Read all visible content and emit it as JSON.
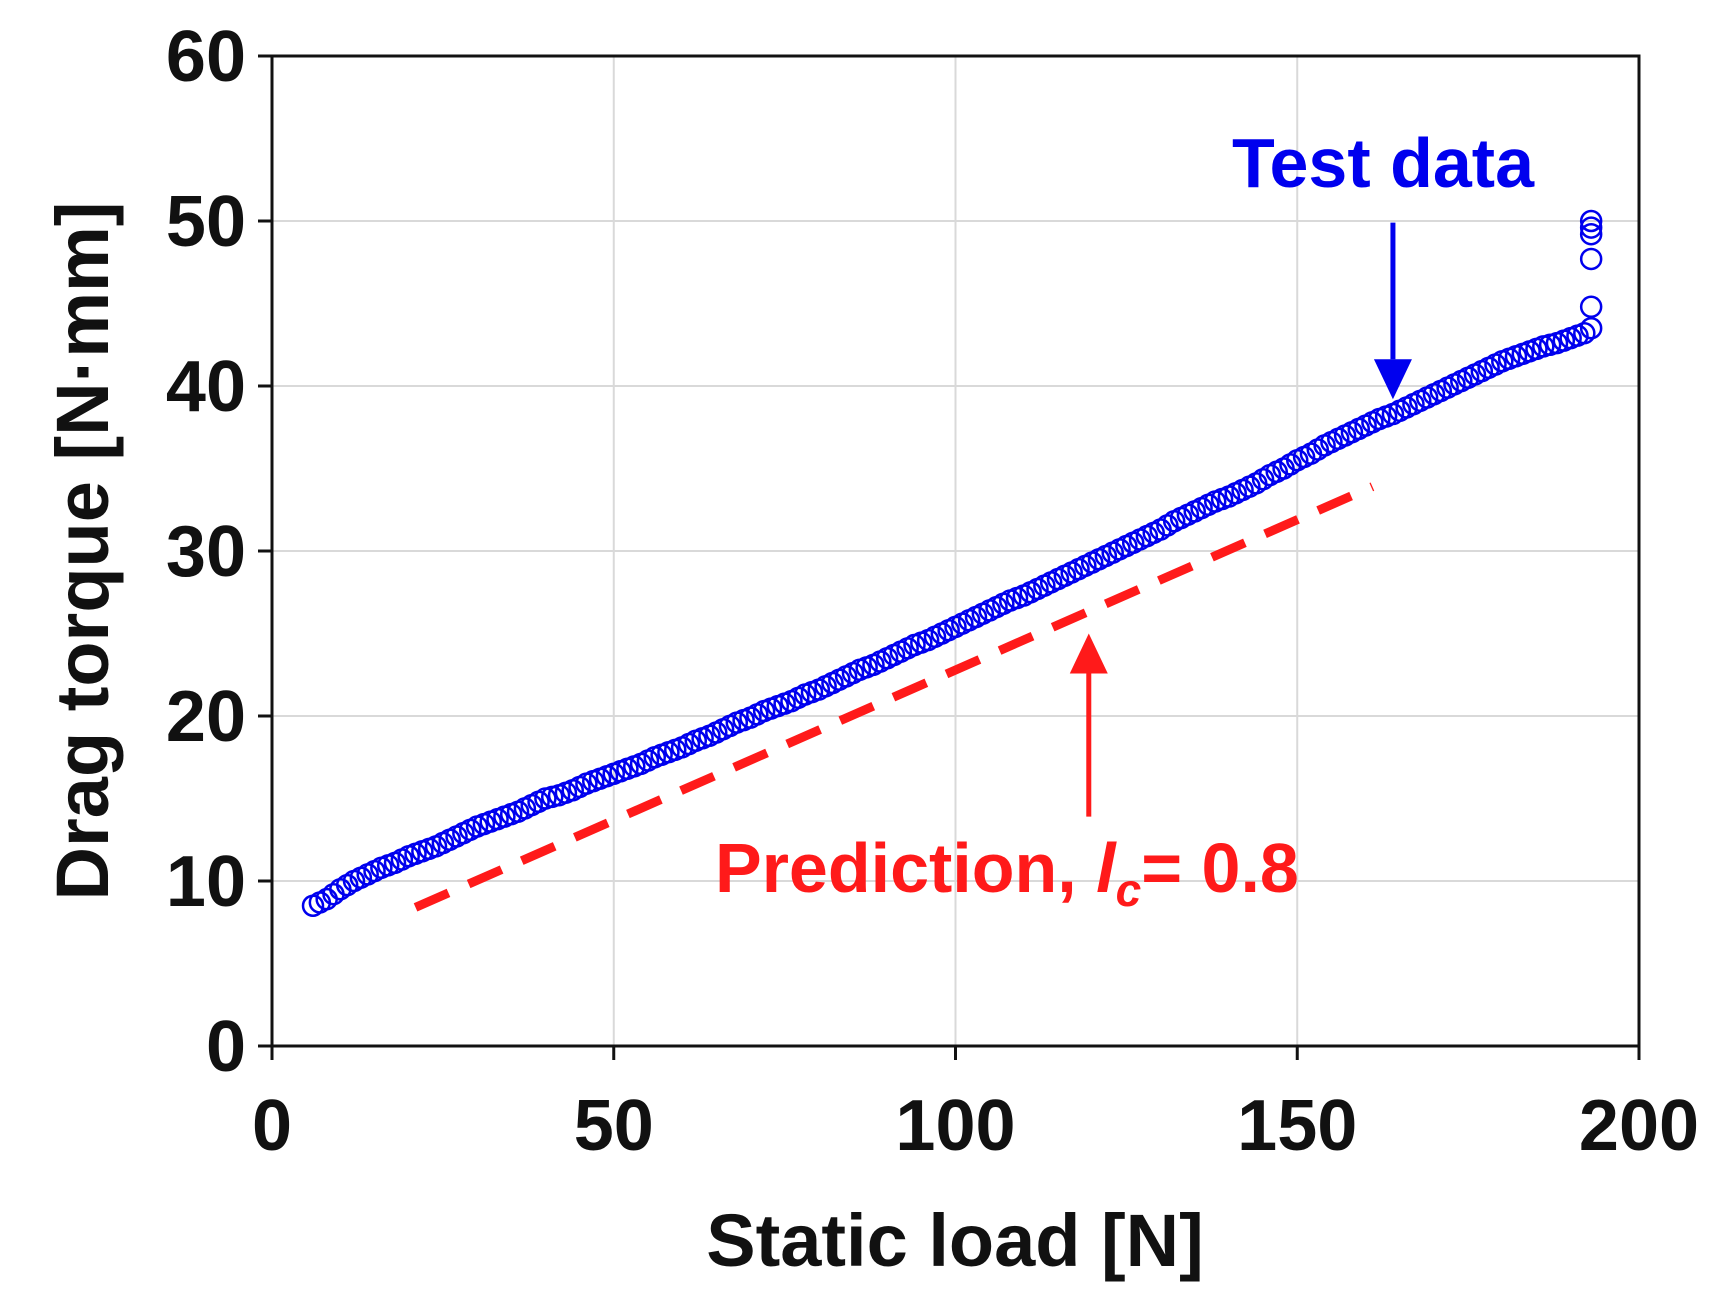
{
  "chart_data": {
    "type": "scatter",
    "xlabel": "Static load [N]",
    "ylabel": "Drag torque [N·mm]",
    "xlim": [
      0,
      200
    ],
    "ylim": [
      0,
      60
    ],
    "x_ticks": [
      0,
      50,
      100,
      150,
      200
    ],
    "y_ticks": [
      0,
      10,
      20,
      30,
      40,
      50,
      60
    ],
    "grid": true,
    "series": [
      {
        "name": "Test data",
        "type": "scatter",
        "marker": "open-circle",
        "color": "#0000ee",
        "x": [
          6,
          8,
          10,
          12,
          14,
          16,
          18,
          20,
          22,
          24,
          26,
          28,
          30,
          32,
          34,
          36,
          38,
          40,
          42,
          44,
          46,
          48,
          50,
          52,
          54,
          56,
          58,
          60,
          62,
          64,
          66,
          68,
          70,
          72,
          74,
          76,
          78,
          80,
          82,
          84,
          86,
          88,
          90,
          92,
          94,
          96,
          98,
          100,
          102,
          104,
          106,
          108,
          110,
          112,
          114,
          116,
          118,
          120,
          122,
          124,
          126,
          128,
          130,
          132,
          134,
          136,
          138,
          140,
          142,
          144,
          146,
          148,
          150,
          152,
          154,
          156,
          158,
          160,
          162,
          164,
          166,
          168,
          170,
          172,
          174,
          176,
          178,
          180,
          182,
          184,
          186,
          188,
          190,
          192,
          193,
          193,
          193,
          193,
          193,
          193
        ],
        "y": [
          8.5,
          8.9,
          9.5,
          10.0,
          10.4,
          10.8,
          11.1,
          11.5,
          11.8,
          12.1,
          12.5,
          12.9,
          13.3,
          13.6,
          13.9,
          14.2,
          14.6,
          15.0,
          15.2,
          15.5,
          15.9,
          16.2,
          16.5,
          16.8,
          17.1,
          17.5,
          17.8,
          18.1,
          18.5,
          18.8,
          19.2,
          19.6,
          19.9,
          20.3,
          20.6,
          20.9,
          21.3,
          21.6,
          22.0,
          22.4,
          22.8,
          23.1,
          23.5,
          23.9,
          24.3,
          24.6,
          25.0,
          25.4,
          25.8,
          26.2,
          26.6,
          27.0,
          27.3,
          27.7,
          28.1,
          28.5,
          28.9,
          29.3,
          29.7,
          30.1,
          30.5,
          30.9,
          31.3,
          31.8,
          32.2,
          32.6,
          33.0,
          33.3,
          33.7,
          34.1,
          34.6,
          35.0,
          35.5,
          35.9,
          36.4,
          36.8,
          37.2,
          37.6,
          38.0,
          38.3,
          38.7,
          39.1,
          39.5,
          39.9,
          40.3,
          40.7,
          41.1,
          41.5,
          41.8,
          42.1,
          42.4,
          42.6,
          42.9,
          43.2,
          44.8,
          47.7,
          49.2,
          49.6,
          50.0,
          43.5
        ]
      },
      {
        "name": "Prediction",
        "type": "line",
        "style": "dashed",
        "color": "#ff1a1a",
        "x": [
          21,
          161
        ],
        "y": [
          8.4,
          33.9
        ]
      }
    ],
    "annotations": [
      {
        "text": "Test data",
        "color": "#0000ee",
        "arrow_from": [
          164,
          49.9
        ],
        "arrow_to": [
          164,
          39.2
        ]
      },
      {
        "text_prefix": "Prediction, ",
        "text_italic": "l",
        "text_subscript": "c",
        "text_suffix": "= 0.8",
        "color": "#ff1a1a",
        "arrow_from": [
          119.5,
          13.9
        ],
        "arrow_to": [
          119.5,
          25.0
        ]
      }
    ]
  }
}
